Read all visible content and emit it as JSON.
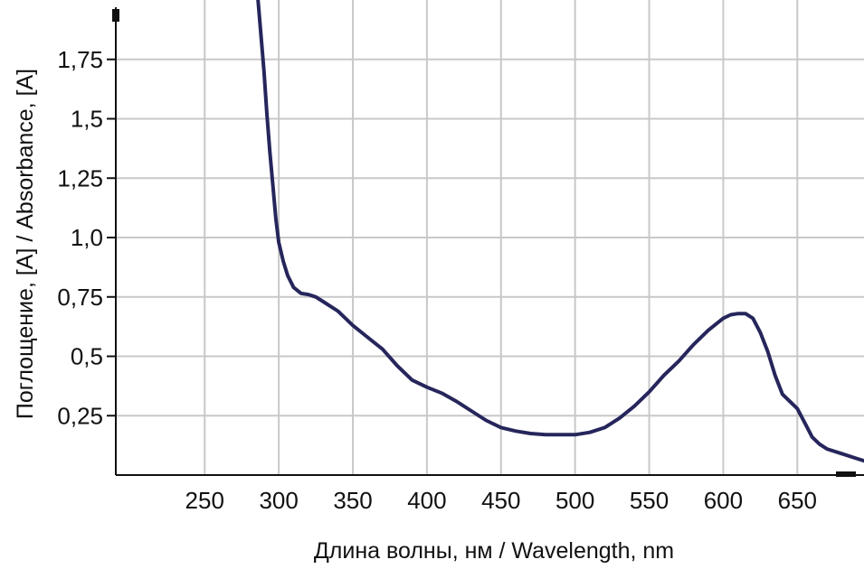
{
  "chart_data": {
    "type": "line",
    "title": "",
    "xlabel": "Длина волны, нм / Wavelength, nm",
    "ylabel": "Поглощение, [A] / Absorbance, [A]",
    "xlim": [
      190,
      695
    ],
    "ylim": [
      0,
      2.0
    ],
    "grid": true,
    "x_ticks": [
      250,
      300,
      350,
      400,
      450,
      500,
      550,
      600,
      650
    ],
    "x_tick_labels": [
      "250",
      "300",
      "350",
      "400",
      "450",
      "500",
      "550",
      "600",
      "650"
    ],
    "y_ticks": [
      0.25,
      0.5,
      0.75,
      1.0,
      1.25,
      1.5,
      1.75
    ],
    "y_tick_labels": [
      "0,25",
      "0,5",
      "0,75",
      "1,0",
      "1,25",
      "1,5",
      "1,75"
    ],
    "line_color": "#26265c",
    "grid_color": "#c8c8c8",
    "series": [
      {
        "x": [
          286,
          288,
          290,
          292,
          294,
          296,
          298,
          300,
          303,
          306,
          310,
          315,
          320,
          325,
          330,
          340,
          350,
          360,
          370,
          380,
          390,
          400,
          410,
          420,
          430,
          440,
          450,
          460,
          470,
          480,
          490,
          500,
          510,
          520,
          530,
          540,
          550,
          560,
          570,
          580,
          590,
          600,
          605,
          610,
          615,
          620,
          625,
          630,
          635,
          640,
          645,
          650,
          655,
          660,
          665,
          670,
          680,
          690,
          695
        ],
        "y": [
          2.0,
          1.85,
          1.7,
          1.52,
          1.36,
          1.22,
          1.08,
          0.98,
          0.9,
          0.84,
          0.79,
          0.765,
          0.76,
          0.75,
          0.73,
          0.69,
          0.63,
          0.58,
          0.53,
          0.46,
          0.4,
          0.37,
          0.345,
          0.31,
          0.27,
          0.23,
          0.2,
          0.185,
          0.175,
          0.17,
          0.17,
          0.17,
          0.18,
          0.2,
          0.24,
          0.29,
          0.35,
          0.42,
          0.48,
          0.55,
          0.61,
          0.66,
          0.675,
          0.68,
          0.68,
          0.66,
          0.6,
          0.52,
          0.42,
          0.34,
          0.31,
          0.28,
          0.22,
          0.16,
          0.13,
          0.11,
          0.09,
          0.07,
          0.06
        ]
      }
    ]
  }
}
